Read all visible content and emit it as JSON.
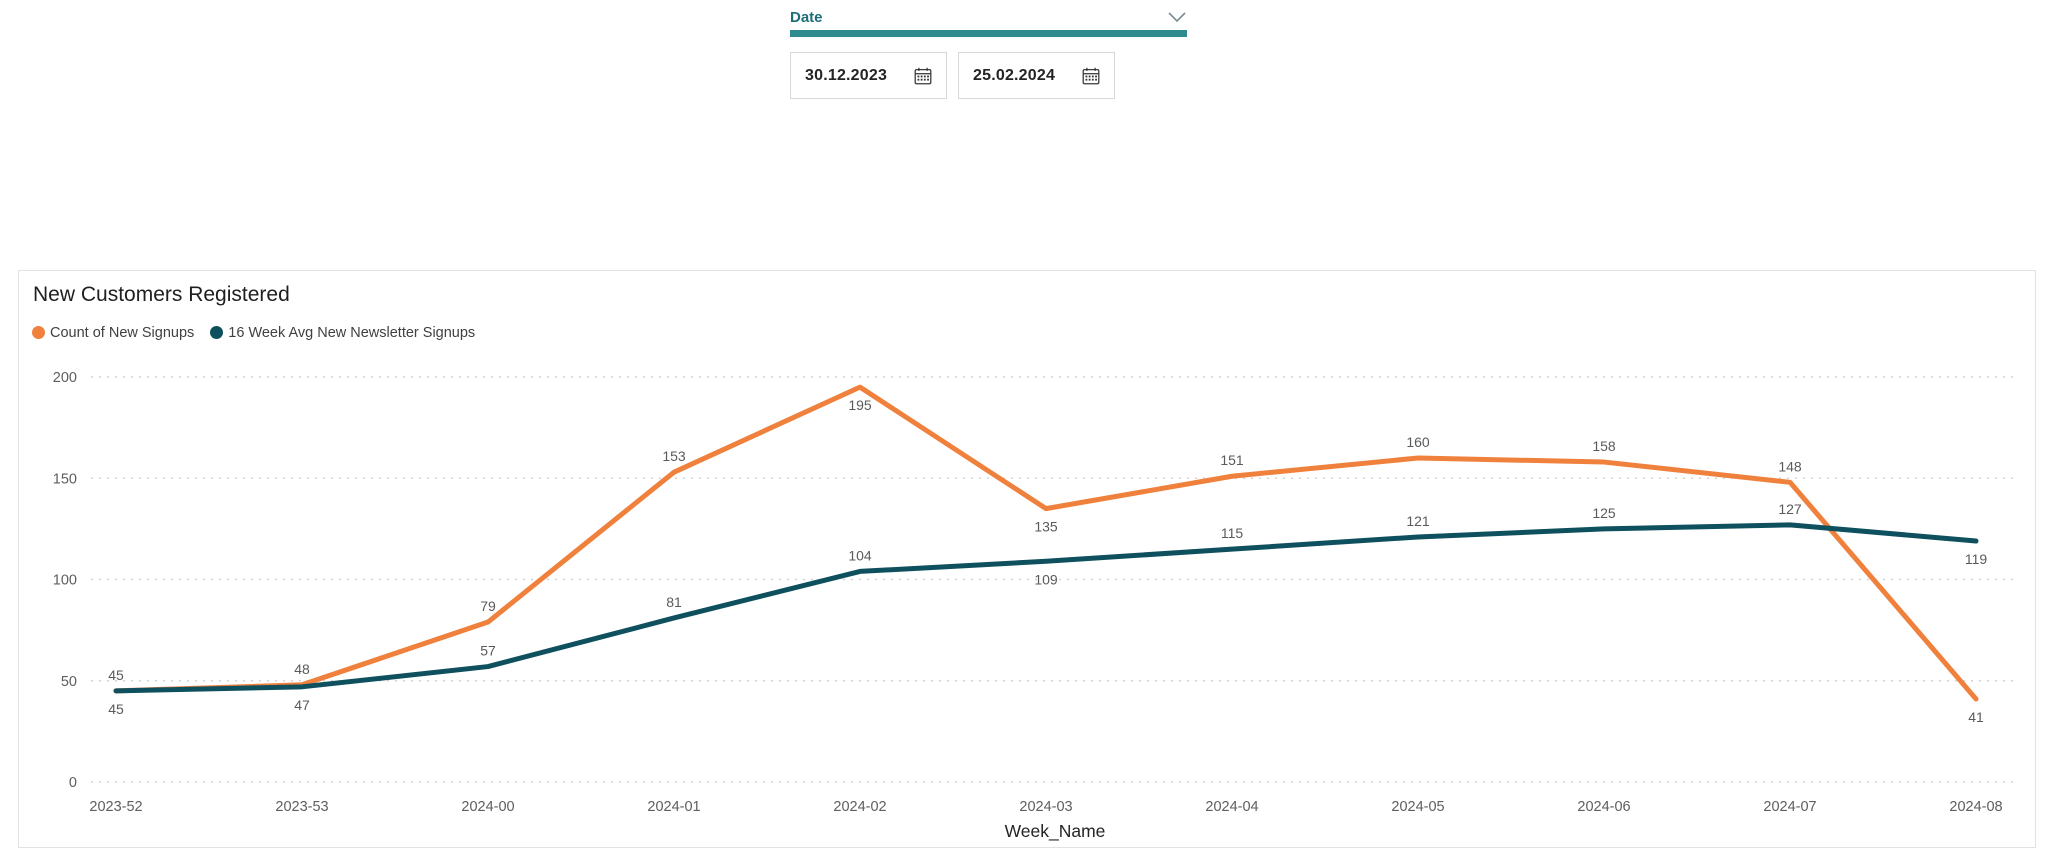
{
  "slicer": {
    "label": "Date",
    "start_date": "30.12.2023",
    "end_date": "25.02.2024",
    "accent_color": "#2E8B8E",
    "label_color": "#1E6E79",
    "chevron_color": "#7A8C94"
  },
  "chart": {
    "title": "New Customers Registered"
  },
  "chart_data": {
    "type": "line",
    "title": "New Customers Registered",
    "categories": [
      "2023-52",
      "2023-53",
      "2024-00",
      "2024-01",
      "2024-02",
      "2024-03",
      "2024-04",
      "2024-05",
      "2024-06",
      "2024-07",
      "2024-08"
    ],
    "series": [
      {
        "name": "Count of New Signups",
        "color": "#EF813C",
        "values": [
          45,
          48,
          79,
          153,
          195,
          135,
          151,
          160,
          158,
          148,
          41
        ],
        "label_positions": [
          "above",
          "above",
          "above",
          "above",
          "below",
          "below",
          "above",
          "above",
          "above",
          "above",
          "below"
        ]
      },
      {
        "name": "16 Week Avg New Newsletter Signups",
        "color": "#0F505E",
        "values": [
          45,
          47,
          57,
          81,
          104,
          109,
          115,
          121,
          125,
          127,
          119
        ],
        "label_positions": [
          "below",
          "below",
          "above",
          "above",
          "above",
          "below",
          "above",
          "above",
          "above",
          "above",
          "below"
        ]
      }
    ],
    "xlabel": "Week_Name",
    "ylabel": "",
    "ylim": [
      0,
      200
    ],
    "yticks": [
      0,
      50,
      100,
      150,
      200
    ],
    "grid": "dotted-horizontal",
    "legend_position": "top-left",
    "data_labels": true
  }
}
